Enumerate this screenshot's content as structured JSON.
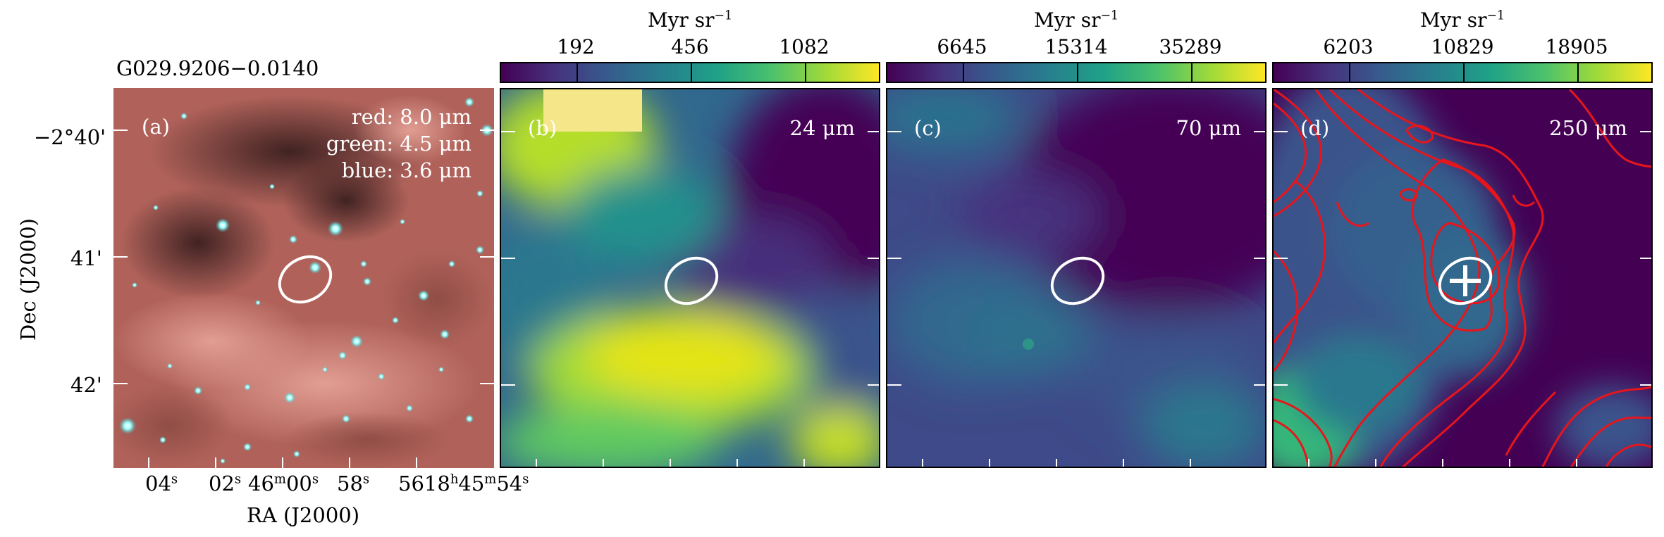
{
  "source_name": "G029.9206−0.0140",
  "axes": {
    "xlabel": "RA (J2000)",
    "ylabel": "Dec (J2000)",
    "dec_ticks": [
      "−2°40'",
      "41'",
      "42'"
    ],
    "ra_ticks": [
      {
        "main": "04",
        "sup": "s"
      },
      {
        "main": "02",
        "sup": "s"
      },
      {
        "main": "46",
        "sup": "m",
        "main2": "00",
        "sup2": "s"
      },
      {
        "main": "58",
        "sup": "s"
      },
      {
        "main": "56",
        "sup": ""
      },
      {
        "main": "18",
        "sup": "h",
        "main2": "45",
        "sup2": "m",
        "main3": "54",
        "sup3": "s"
      }
    ]
  },
  "panels": [
    {
      "letter": "(a)",
      "legend": [
        "red: 8.0 μm",
        "green: 4.5 μm",
        "blue: 3.6 μm"
      ]
    },
    {
      "letter": "(b)",
      "band": "24 μm"
    },
    {
      "letter": "(c)",
      "band": "70 μm"
    },
    {
      "letter": "(d)",
      "band": "250 μm"
    }
  ],
  "colorbars": [
    {
      "unit": "Myr sr",
      "unit_exp": "−1",
      "ticks": [
        "192",
        "456",
        "1082"
      ]
    },
    {
      "unit": "Myr sr",
      "unit_exp": "−1",
      "ticks": [
        "6645",
        "15314",
        "35289"
      ]
    },
    {
      "unit": "Myr sr",
      "unit_exp": "−1",
      "ticks": [
        "6203",
        "10829",
        "18905"
      ]
    }
  ],
  "colors": {
    "colormap": [
      "#440154",
      "#46327e",
      "#365c8d",
      "#277f8e",
      "#1fa187",
      "#4ac16d",
      "#a0da39",
      "#fde725"
    ],
    "contour": "#e8151b",
    "ellipse": "#ffffff"
  }
}
